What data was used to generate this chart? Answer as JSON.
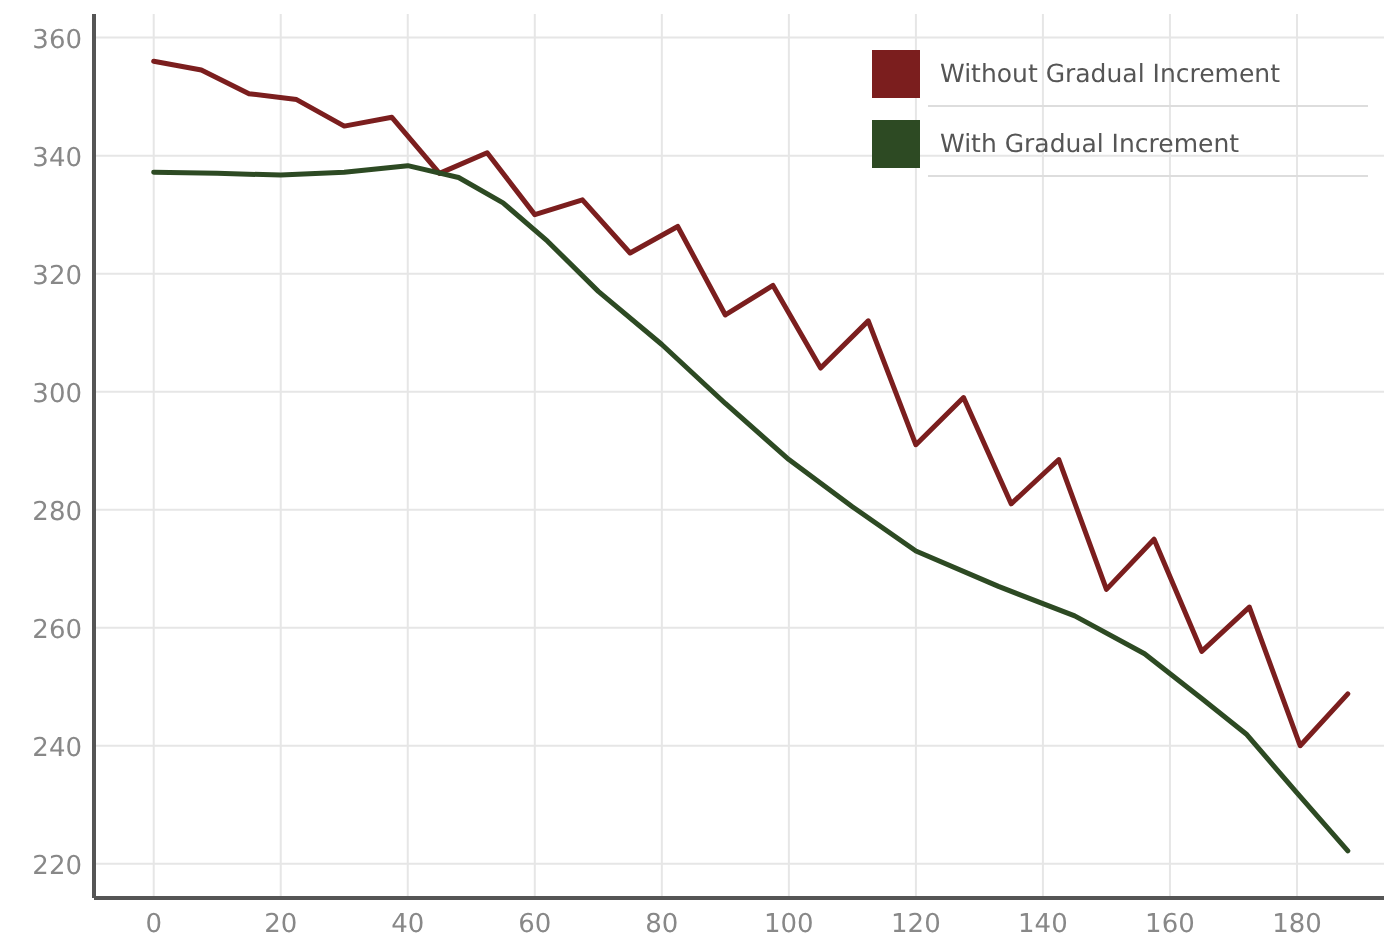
{
  "chart_data": {
    "type": "line",
    "xlim": [
      -9.4,
      193.7
    ],
    "ylim": [
      214.2,
      364
    ],
    "xticks": [
      0,
      20,
      40,
      60,
      80,
      100,
      120,
      140,
      160,
      180
    ],
    "yticks": [
      220,
      240,
      260,
      280,
      300,
      320,
      340,
      360
    ],
    "grid": true,
    "legend": "top right",
    "marker": "none",
    "line_style": "solid",
    "series": [
      {
        "name": "Without Gradual Increment",
        "color": "#7b1e1e",
        "x": [
          0,
          7.5,
          15,
          22.5,
          30,
          37.5,
          45,
          52.5,
          60,
          67.5,
          75,
          82.5,
          90,
          97.5,
          105,
          112.5,
          120,
          127.5,
          135,
          142.5,
          150,
          157.5,
          165,
          172.5,
          180.5,
          188
        ],
        "values": [
          356,
          354.5,
          350.5,
          349.5,
          345,
          346.5,
          337,
          340.5,
          330,
          332.5,
          323.5,
          328,
          313,
          318,
          304,
          312,
          291,
          299,
          281,
          288.5,
          266.5,
          275,
          256,
          263.5,
          240,
          248.8
        ]
      },
      {
        "name": "With Gradual Increment",
        "color": "#2d4a23",
        "x": [
          0,
          10,
          20,
          30,
          40,
          48,
          55,
          62,
          70,
          80,
          90,
          100,
          110,
          120,
          133,
          145,
          156,
          165,
          172,
          180,
          188
        ],
        "values": [
          337.2,
          337,
          336.7,
          337.2,
          338.3,
          336.3,
          332,
          325.5,
          317,
          308,
          298,
          288.5,
          280.5,
          273,
          267,
          262,
          255.6,
          248,
          242,
          232,
          222.2
        ]
      }
    ]
  }
}
